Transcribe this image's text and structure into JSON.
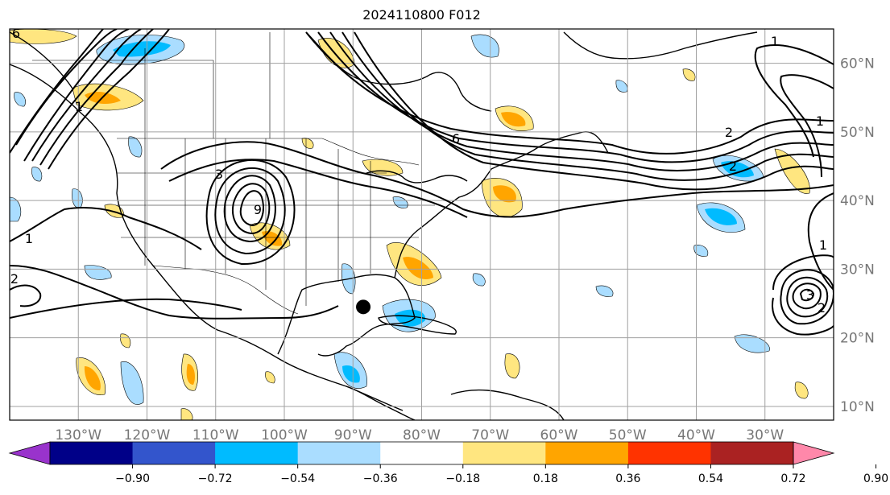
{
  "title": "2024110800 F012",
  "map": {
    "extent": {
      "lon_min": -140,
      "lon_max": -20,
      "lat_min": 8,
      "lat_max": 65
    },
    "meridians": [
      -130,
      -120,
      -110,
      -100,
      -90,
      -80,
      -70,
      -60,
      -50,
      -40,
      -30
    ],
    "parallels": [
      10,
      20,
      30,
      40,
      50,
      60
    ],
    "lon_labels": [
      "130°W",
      "120°W",
      "110°W",
      "100°W",
      "90°W",
      "80°W",
      "70°W",
      "60°W",
      "50°W",
      "40°W",
      "30°W"
    ],
    "lat_labels": [
      "10°N",
      "20°N",
      "30°N",
      "40°N",
      "50°N",
      "60°N"
    ],
    "storm_marker": {
      "lon": -88.5,
      "lat": 24.5
    },
    "contour_labels": [
      "6",
      "1",
      "1",
      "6",
      "3",
      "9",
      "2",
      "1",
      "2",
      "1",
      "1",
      "2",
      "2",
      "3"
    ],
    "grid_color": "#a0a0a0",
    "label_color": "#777777"
  },
  "colorbar": {
    "tick_labels": [
      "−0.90",
      "−0.72",
      "−0.54",
      "−0.36",
      "−0.18",
      "0.18",
      "0.36",
      "0.54",
      "0.72",
      "0.90"
    ],
    "colors": [
      "#9933cc",
      "#000088",
      "#3355cc",
      "#00bbff",
      "#aaddff",
      "#ffffff",
      "#ffe680",
      "#ffa500",
      "#ff3300",
      "#aa2222",
      "#ff88aa"
    ]
  }
}
